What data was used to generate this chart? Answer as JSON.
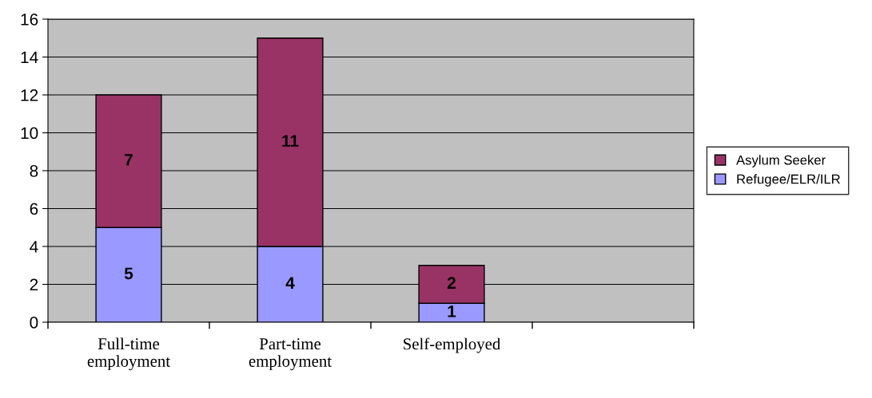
{
  "chart_data": {
    "type": "bar",
    "stacked": true,
    "categories": [
      "Full-time\nemployment",
      "Part-time\nemployment",
      "Self-employed",
      null
    ],
    "series": [
      {
        "name": "Refugee/ELR/ILR",
        "color": "#9999ff",
        "values": [
          5,
          4,
          1,
          null
        ]
      },
      {
        "name": "Asylum Seeker",
        "color": "#993366",
        "values": [
          7,
          11,
          2,
          null
        ]
      }
    ],
    "ylim": [
      0,
      16
    ],
    "yticks": [
      0,
      2,
      4,
      6,
      8,
      10,
      12,
      14,
      16
    ],
    "grid": "y",
    "legend": "right",
    "data_labels": true
  }
}
